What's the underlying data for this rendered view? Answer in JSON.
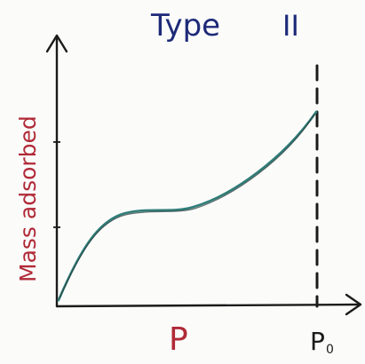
{
  "title": "Type",
  "title_numeral": "II",
  "ylabel": "Mass adsorbed",
  "xlabel": "P",
  "x_limit_label": "P",
  "x_limit_subscript": "0",
  "colors": {
    "ink": "#1b1b1b",
    "curve": "#2f7d78",
    "label_red": "#b02a37",
    "title_blue": "#1d2a78",
    "paper": "#fbfbfa"
  }
}
